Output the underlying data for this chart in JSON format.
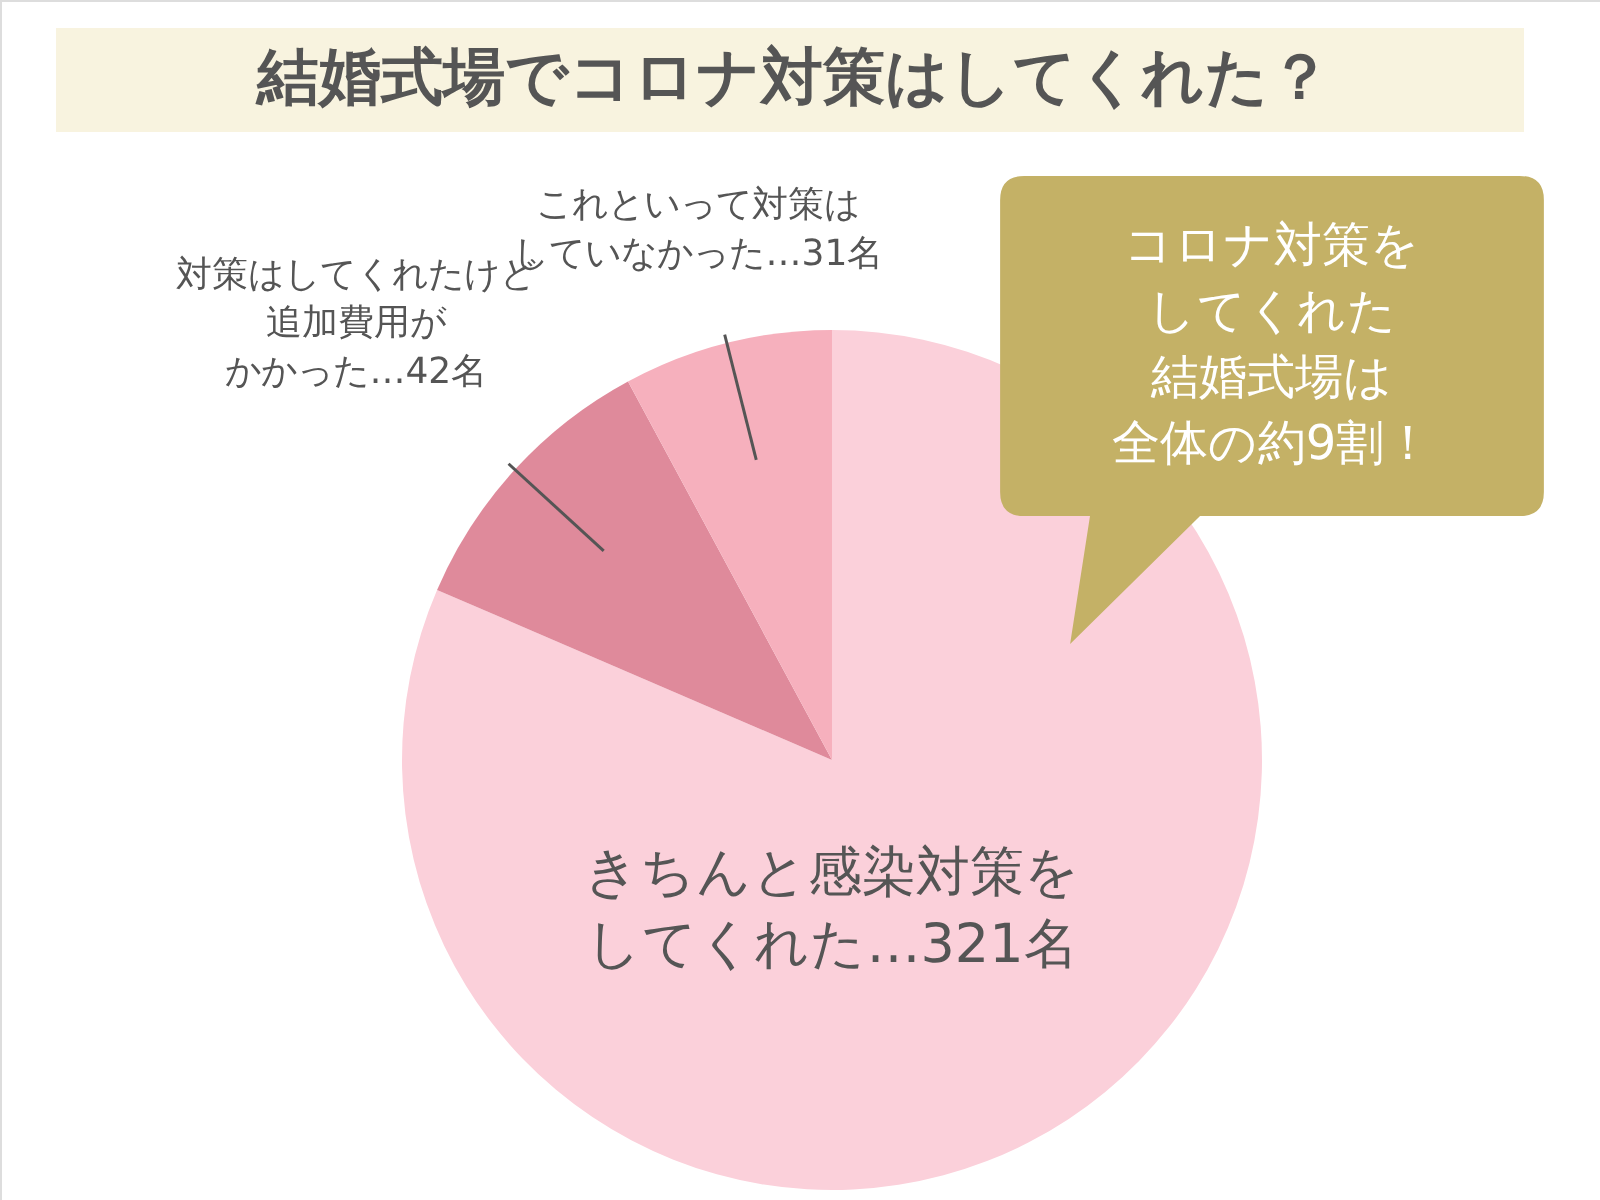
{
  "chart_data": {
    "type": "pie",
    "title": "結婚式場でコロナ対策はしてくれた？",
    "categories": [
      "きちんと感染対策をしてくれた…321名",
      "対策はしてくれたけど追加費用がかかった…42名",
      "これといって対策はしていなかった…31名"
    ],
    "values": [
      321,
      42,
      31
    ],
    "colors": [
      "#fbd0da",
      "#df8a9b",
      "#f6b0bd"
    ],
    "annotations": [
      "コロナ対策をしてくれた結婚式場は全体の約9割！"
    ]
  }
}
